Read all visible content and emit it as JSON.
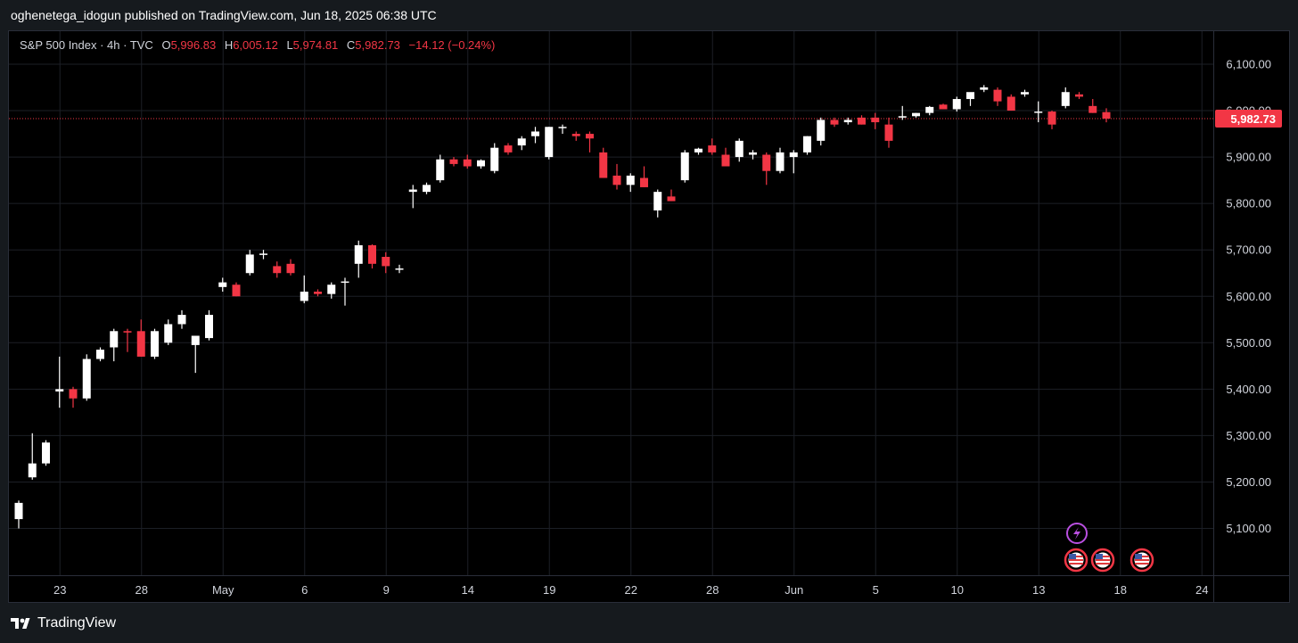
{
  "header": {
    "publisher": "oghenetega_idogun published on TradingView.com, Jun 18, 2025 06:38 UTC"
  },
  "legend": {
    "symbol": "S&P 500 Index · 4h · TVC",
    "o_label": "O",
    "o_value": "5,996.83",
    "h_label": "H",
    "h_value": "6,005.12",
    "l_label": "L",
    "l_value": "5,974.81",
    "c_label": "C",
    "c_value": "5,982.73",
    "change": "−14.12 (−0.24%)"
  },
  "footer": {
    "brand": "TradingView"
  },
  "colors": {
    "up": "#ffffff",
    "down": "#f23645",
    "grid": "#1c1f26",
    "background": "#000000",
    "price_tag": "#f23645"
  },
  "events": {
    "lightning_icon": "lightning-icon",
    "flags": [
      "us-flag-icon",
      "us-flag-icon",
      "us-flag-icon"
    ]
  },
  "chart_data": {
    "type": "candlestick",
    "ylim": [
      5000,
      6160
    ],
    "y_ticks": [
      "6,100.00",
      "6,000.00",
      "5,900.00",
      "5,800.00",
      "5,700.00",
      "5,600.00",
      "5,500.00",
      "5,400.00",
      "5,300.00",
      "5,200.00",
      "5,100.00"
    ],
    "y_tick_values": [
      6100,
      6000,
      5900,
      5800,
      5700,
      5600,
      5500,
      5400,
      5300,
      5200,
      5100
    ],
    "x_ticks": [
      {
        "label": "23",
        "bar": 3
      },
      {
        "label": "28",
        "bar": 9
      },
      {
        "label": "May",
        "bar": 15
      },
      {
        "label": "6",
        "bar": 21
      },
      {
        "label": "9",
        "bar": 27
      },
      {
        "label": "14",
        "bar": 33
      },
      {
        "label": "19",
        "bar": 39
      },
      {
        "label": "22",
        "bar": 45
      },
      {
        "label": "28",
        "bar": 51
      },
      {
        "label": "Jun",
        "bar": 57
      },
      {
        "label": "5",
        "bar": 63
      },
      {
        "label": "10",
        "bar": 69
      },
      {
        "label": "13",
        "bar": 75
      },
      {
        "label": "18",
        "bar": 81
      },
      {
        "label": "24",
        "bar": 87
      }
    ],
    "last_price": 5982.73,
    "last_price_label": "5,982.73",
    "candles": [
      [
        5120,
        5160,
        5100,
        5155
      ],
      [
        5210,
        5305,
        5205,
        5240
      ],
      [
        5240,
        5290,
        5235,
        5285
      ],
      [
        5395,
        5470,
        5360,
        5400
      ],
      [
        5400,
        5405,
        5360,
        5380
      ],
      [
        5380,
        5475,
        5375,
        5465
      ],
      [
        5465,
        5490,
        5460,
        5485
      ],
      [
        5490,
        5530,
        5460,
        5525
      ],
      [
        5525,
        5530,
        5480,
        5522
      ],
      [
        5525,
        5550,
        5470,
        5470
      ],
      [
        5470,
        5530,
        5465,
        5525
      ],
      [
        5500,
        5550,
        5495,
        5540
      ],
      [
        5540,
        5570,
        5530,
        5560
      ],
      [
        5495,
        5515,
        5435,
        5515
      ],
      [
        5510,
        5570,
        5505,
        5560
      ],
      [
        5620,
        5640,
        5610,
        5630
      ],
      [
        5625,
        5630,
        5600,
        5600
      ],
      [
        5650,
        5700,
        5645,
        5690
      ],
      [
        5690,
        5700,
        5680,
        5692
      ],
      [
        5665,
        5675,
        5640,
        5650
      ],
      [
        5670,
        5680,
        5645,
        5650
      ],
      [
        5590,
        5645,
        5585,
        5610
      ],
      [
        5610,
        5615,
        5600,
        5605
      ],
      [
        5605,
        5630,
        5595,
        5625
      ],
      [
        5630,
        5640,
        5580,
        5632
      ],
      [
        5670,
        5720,
        5640,
        5710
      ],
      [
        5710,
        5712,
        5660,
        5670
      ],
      [
        5685,
        5695,
        5650,
        5665
      ],
      [
        5658,
        5668,
        5650,
        5660
      ],
      [
        5825,
        5840,
        5790,
        5830
      ],
      [
        5825,
        5845,
        5820,
        5840
      ],
      [
        5850,
        5905,
        5845,
        5895
      ],
      [
        5895,
        5900,
        5880,
        5885
      ],
      [
        5895,
        5905,
        5875,
        5880
      ],
      [
        5880,
        5895,
        5875,
        5893
      ],
      [
        5870,
        5930,
        5865,
        5920
      ],
      [
        5925,
        5930,
        5905,
        5910
      ],
      [
        5925,
        5945,
        5915,
        5940
      ],
      [
        5945,
        5965,
        5930,
        5955
      ],
      [
        5900,
        5965,
        5895,
        5965
      ],
      [
        5965,
        5970,
        5950,
        5965
      ],
      [
        5950,
        5955,
        5935,
        5945
      ],
      [
        5950,
        5955,
        5910,
        5940
      ],
      [
        5910,
        5920,
        5855,
        5855
      ],
      [
        5860,
        5885,
        5830,
        5840
      ],
      [
        5840,
        5865,
        5825,
        5860
      ],
      [
        5855,
        5880,
        5835,
        5835
      ],
      [
        5785,
        5830,
        5770,
        5825
      ],
      [
        5815,
        5830,
        5805,
        5805
      ],
      [
        5850,
        5915,
        5845,
        5910
      ],
      [
        5910,
        5920,
        5905,
        5918
      ],
      [
        5925,
        5940,
        5905,
        5910
      ],
      [
        5905,
        5920,
        5880,
        5880
      ],
      [
        5900,
        5940,
        5890,
        5935
      ],
      [
        5905,
        5915,
        5895,
        5910
      ],
      [
        5905,
        5910,
        5840,
        5870
      ],
      [
        5870,
        5920,
        5865,
        5910
      ],
      [
        5900,
        5915,
        5865,
        5910
      ],
      [
        5910,
        5945,
        5905,
        5945
      ],
      [
        5935,
        5985,
        5925,
        5980
      ],
      [
        5980,
        5985,
        5965,
        5970
      ],
      [
        5975,
        5985,
        5970,
        5980
      ],
      [
        5985,
        5990,
        5970,
        5970
      ],
      [
        5985,
        5995,
        5960,
        5975
      ],
      [
        5970,
        5985,
        5920,
        5935
      ],
      [
        5985,
        6010,
        5980,
        5988
      ],
      [
        5988,
        5995,
        5985,
        5995
      ],
      [
        5995,
        6010,
        5990,
        6008
      ],
      [
        6013,
        6015,
        6003,
        6003
      ],
      [
        6003,
        6030,
        5998,
        6025
      ],
      [
        6025,
        6035,
        6010,
        6040
      ],
      [
        6045,
        6055,
        6040,
        6050
      ],
      [
        6045,
        6050,
        6010,
        6020
      ],
      [
        6030,
        6035,
        6000,
        6000
      ],
      [
        6035,
        6045,
        6030,
        6040
      ],
      [
        5997,
        6020,
        5975,
        5998
      ],
      [
        5998,
        6000,
        5960,
        5970
      ],
      [
        6010,
        6050,
        6005,
        6040
      ],
      [
        6035,
        6040,
        6025,
        6030
      ],
      [
        6010,
        6025,
        5995,
        5995
      ],
      [
        5996.83,
        6005.12,
        5974.81,
        5982.73
      ]
    ]
  }
}
